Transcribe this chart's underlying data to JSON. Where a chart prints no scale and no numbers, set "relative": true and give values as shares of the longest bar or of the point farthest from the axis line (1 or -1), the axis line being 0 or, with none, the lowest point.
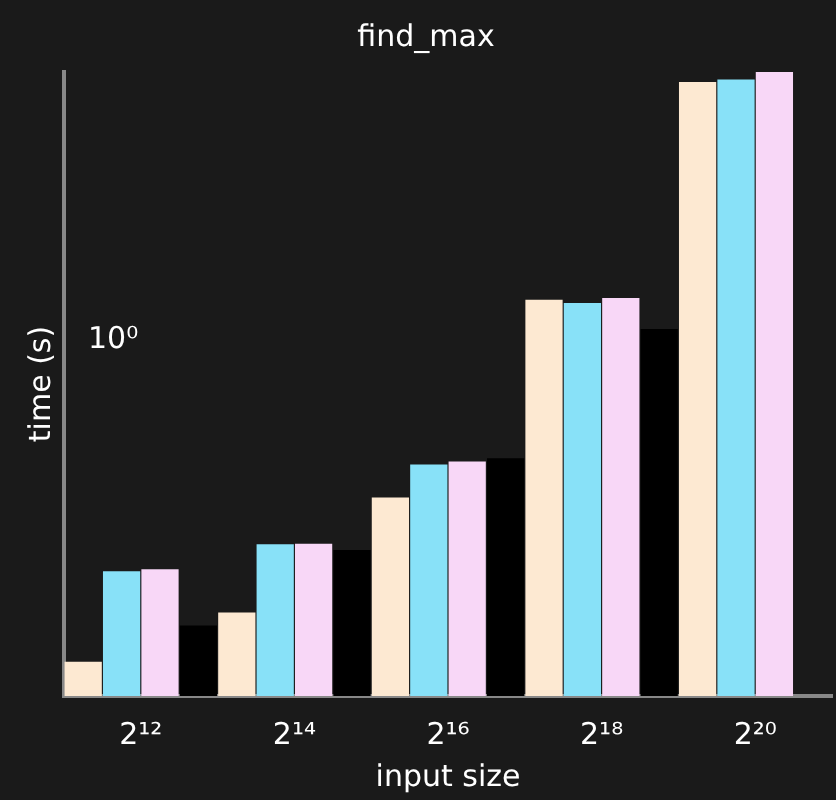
{
  "chart_data": {
    "type": "bar",
    "title": "find_max",
    "xlabel": "input size",
    "ylabel": "time (s)",
    "categories": [
      "2¹²",
      "2¹⁴",
      "2¹⁶",
      "2¹⁸",
      "2²⁰"
    ],
    "relative": true,
    "series": [
      {
        "color": "#fde9d2",
        "values": [
          0.055,
          0.134,
          0.318,
          0.635,
          0.984
        ]
      },
      {
        "color": "#88e1f8",
        "values": [
          0.2,
          0.243,
          0.371,
          0.63,
          0.988
        ]
      },
      {
        "color": "#f8d7f7",
        "values": [
          0.203,
          0.244,
          0.376,
          0.638,
          1
        ]
      },
      {
        "color": "#000000",
        "values": [
          0.113,
          0.234,
          0.381,
          0.588,
          null
        ]
      }
    ],
    "annotations": [
      "10⁰"
    ],
    "legend": false
  }
}
